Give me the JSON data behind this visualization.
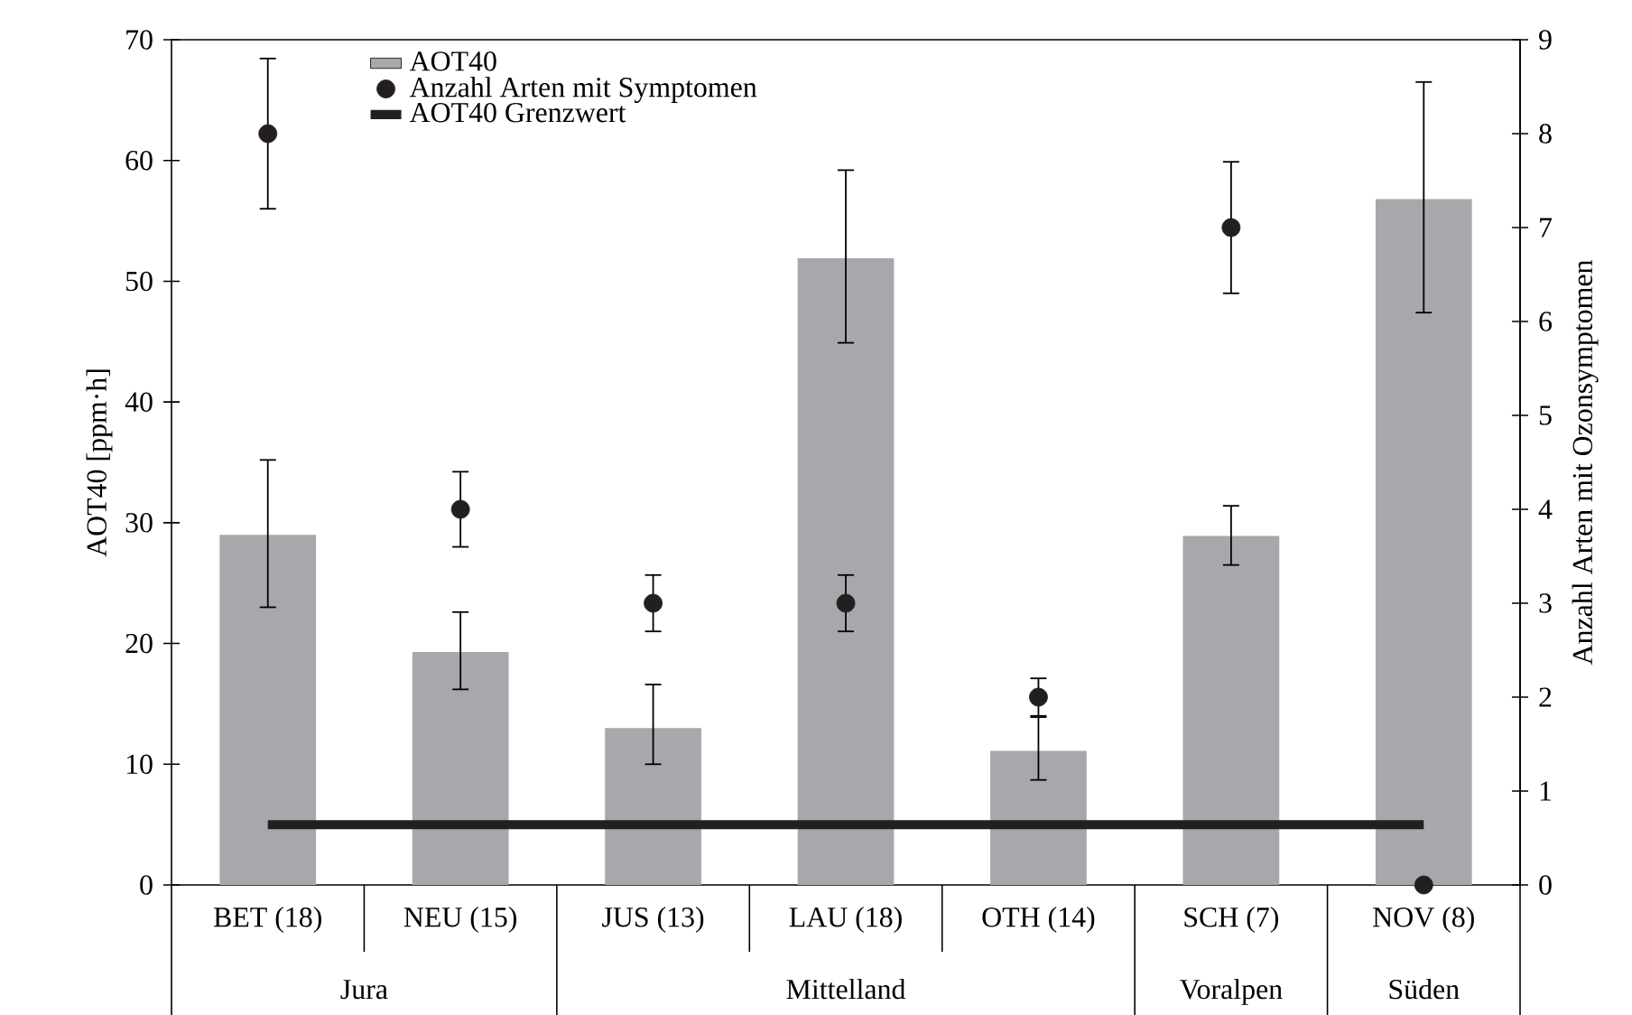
{
  "chart_data": {
    "type": "bar",
    "categories": [
      "BET (18)",
      "NEU (15)",
      "JUS (13)",
      "LAU (18)",
      "OTH (14)",
      "SCH (7)",
      "NOV (8)"
    ],
    "series": [
      {
        "name": "AOT40",
        "color": "#a7a8ab",
        "values": [
          29,
          19.3,
          13,
          51.9,
          11.1,
          28.9,
          56.8
        ],
        "errors": [
          [
            23,
            35.2
          ],
          [
            16.2,
            22.6
          ],
          [
            10,
            16.6
          ],
          [
            44.9,
            59.2
          ],
          [
            8.7,
            13.9
          ],
          [
            26.5,
            31.4
          ],
          [
            47.4,
            66.5
          ]
        ]
      },
      {
        "name": "Anzahl Arten mit Symptomen",
        "type": "scatter",
        "axis": "y2",
        "color": "#231f20",
        "values": [
          8,
          4,
          3,
          3,
          2,
          7,
          0
        ],
        "errors": [
          [
            7.2,
            8.8
          ],
          [
            3.6,
            4.4
          ],
          [
            2.7,
            3.3
          ],
          [
            2.7,
            3.3
          ],
          [
            1.8,
            2.2
          ],
          [
            6.3,
            7.7
          ],
          null
        ]
      }
    ],
    "ylabel": "AOT40 [ppm·h]",
    "y2label": "Anzahl Arten mit Ozonsymptomen",
    "ylim": [
      0,
      70
    ],
    "yticks": [
      0,
      10,
      20,
      30,
      40,
      50,
      60,
      70
    ],
    "y2lim": [
      0,
      9
    ],
    "y2ticks": [
      0,
      1,
      2,
      3,
      4,
      5,
      6,
      7,
      8,
      9
    ],
    "ref_lines": [
      {
        "axis": "y",
        "value": 5,
        "label": "AOT40 Grenzwert",
        "color": "#231f20"
      }
    ],
    "annotations": [
      "Jura",
      "Mittelland",
      "Voralpen",
      "Süden"
    ],
    "legend": "top left"
  }
}
